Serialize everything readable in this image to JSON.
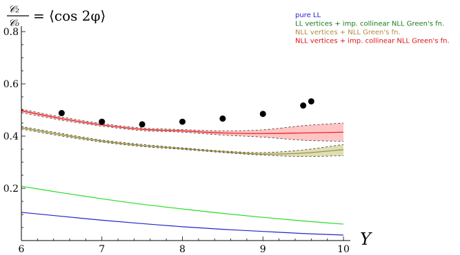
{
  "chart_data": {
    "type": "line",
    "title": "",
    "ylabel": {
      "numerator": "𝒞₂",
      "denominator": "𝒞₀",
      "rhs": "= ⟨cos 2φ⟩"
    },
    "xlabel": "Y",
    "xlim": [
      6,
      10
    ],
    "ylim": [
      0,
      0.8
    ],
    "x_ticks": [
      6,
      7,
      8,
      9,
      10
    ],
    "x_tick_labels": [
      "6",
      "7",
      "8",
      "9",
      "10"
    ],
    "y_ticks": [
      0.2,
      0.4,
      0.6,
      0.8
    ],
    "y_tick_labels": [
      "0.2",
      "0.4",
      "0.6",
      "0.8"
    ],
    "legend_position": "top-right",
    "x": [
      6,
      6.5,
      7,
      7.5,
      8,
      8.5,
      9,
      9.5,
      10
    ],
    "series": [
      {
        "name": "pure LL",
        "color": "#2222cc",
        "values": [
          0.108,
          0.093,
          0.078,
          0.065,
          0.053,
          0.043,
          0.035,
          0.027,
          0.021
        ]
      },
      {
        "name": "LL vertices + imp. collinear NLL Green's fn.",
        "color": "#22dd22",
        "legend_color": "#1a7a1a",
        "values": [
          0.208,
          0.183,
          0.16,
          0.139,
          0.121,
          0.104,
          0.089,
          0.075,
          0.063
        ]
      },
      {
        "name": "NLL vertices + NLL Green's fn.",
        "color": "#9a8a3a",
        "legend_color": "#b08a40",
        "band_color": "#d8d8a8",
        "values": [
          0.432,
          0.405,
          0.381,
          0.364,
          0.352,
          0.34,
          0.331,
          0.335,
          0.348
        ],
        "lower": [
          0.427,
          0.4,
          0.377,
          0.36,
          0.349,
          0.337,
          0.327,
          0.322,
          0.325
        ],
        "upper": [
          0.437,
          0.41,
          0.385,
          0.368,
          0.355,
          0.343,
          0.337,
          0.347,
          0.368
        ]
      },
      {
        "name": "NLL vertices + imp. collinear NLL Green's fn.",
        "color": "#ee1111",
        "legend_color": "#dd1111",
        "band_color": "#ffbbbb",
        "values": [
          0.497,
          0.467,
          0.443,
          0.426,
          0.42,
          0.412,
          0.41,
          0.412,
          0.415
        ],
        "lower": [
          0.49,
          0.461,
          0.438,
          0.421,
          0.415,
          0.404,
          0.396,
          0.384,
          0.38
        ],
        "upper": [
          0.503,
          0.473,
          0.448,
          0.431,
          0.425,
          0.42,
          0.424,
          0.44,
          0.45
        ]
      }
    ],
    "points": {
      "color": "#000000",
      "x": [
        6.5,
        7.0,
        7.5,
        8.0,
        8.5,
        9.0,
        9.5,
        9.6
      ],
      "y": [
        0.488,
        0.455,
        0.445,
        0.455,
        0.467,
        0.485,
        0.517,
        0.533
      ]
    }
  }
}
